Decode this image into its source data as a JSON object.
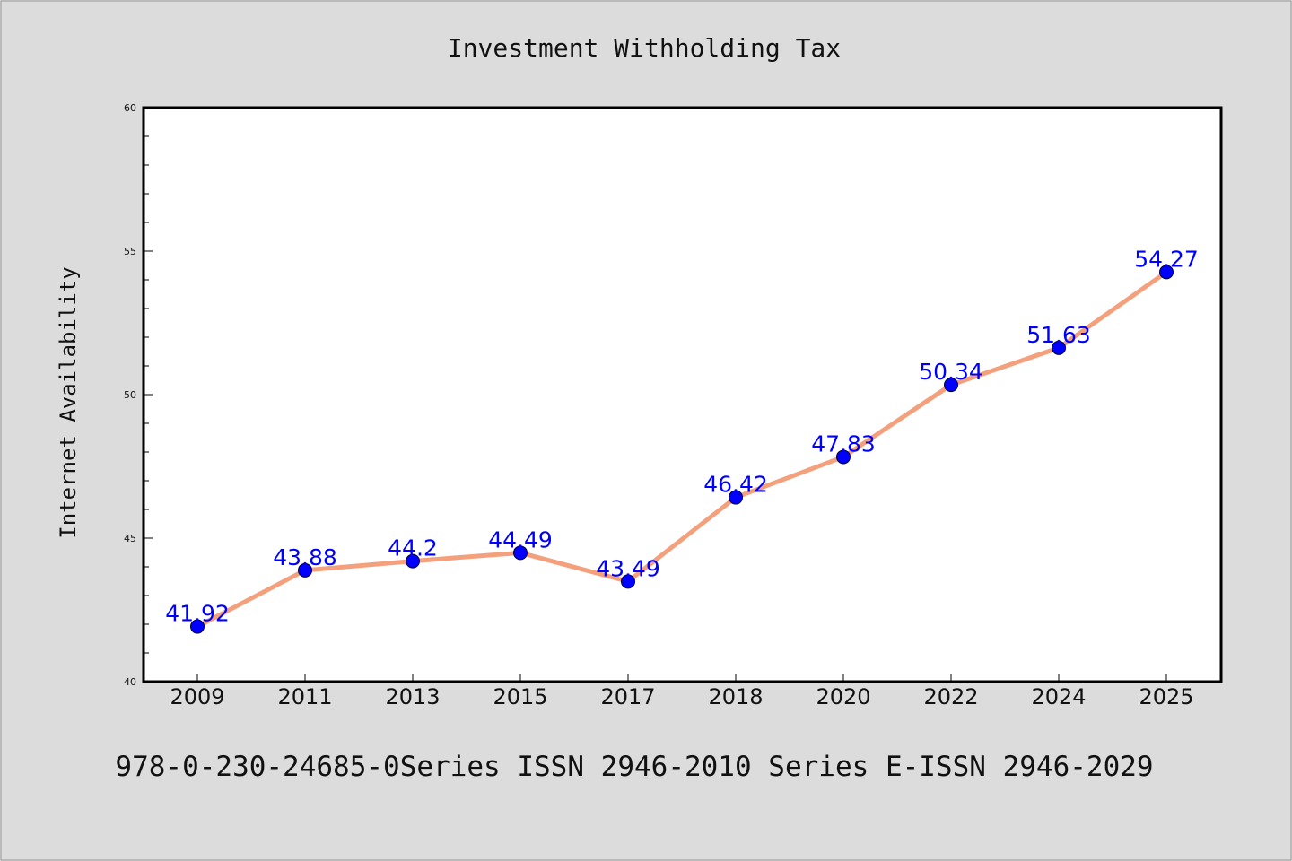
{
  "chart_data": {
    "type": "line",
    "title": "Investment Withholding Tax",
    "xlabel": "",
    "ylabel": "Internet Availability",
    "categories": [
      "2009",
      "2011",
      "2013",
      "2015",
      "2017",
      "2018",
      "2020",
      "2022",
      "2024",
      "2025"
    ],
    "series": [
      {
        "values": [
          41.92,
          43.88,
          44.2,
          44.49,
          43.49,
          46.42,
          47.83,
          50.34,
          51.63,
          54.27
        ],
        "data_labels": [
          "41.92",
          "43.88",
          "44.2",
          "44.49",
          "43.49",
          "46.42",
          "47.83",
          "50.34",
          "51.63",
          "54.27"
        ]
      }
    ],
    "ylim": [
      40,
      60
    ],
    "yticks": [
      "40",
      "45",
      "50",
      "55",
      "60"
    ],
    "grid": false,
    "legend": "none",
    "colors": {
      "line": "#f4a07c",
      "marker": "#0000ff",
      "data_label": "#0000ff",
      "background": "#dcdcdc",
      "plot_background": "#ffffff"
    }
  },
  "footer": {
    "text": "978-0-230-24685-0Series ISSN 2946-2010 Series E-ISSN 2946-2029"
  }
}
